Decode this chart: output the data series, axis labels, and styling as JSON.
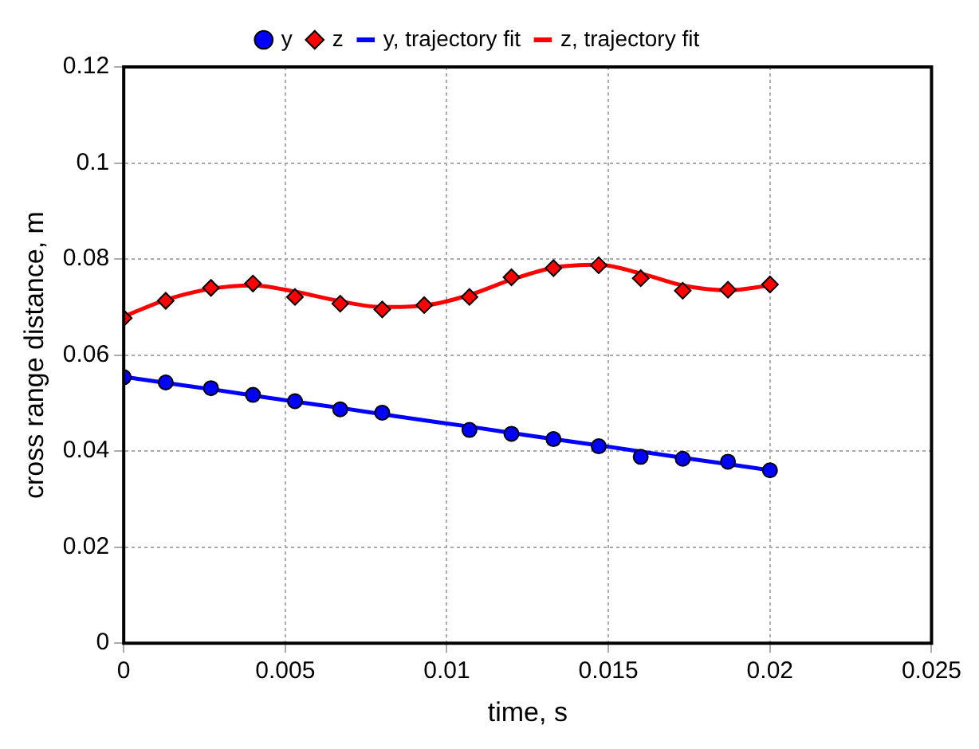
{
  "chart_data": {
    "type": "scatter",
    "xlabel": "time, s",
    "ylabel": "cross range distance, m",
    "xlim": [
      0,
      0.025
    ],
    "xticks": [
      0,
      0.005,
      0.01,
      0.015,
      0.02,
      0.025
    ],
    "ylim": [
      0,
      0.12
    ],
    "yticks": [
      0,
      0.02,
      0.04,
      0.06,
      0.08,
      0.1,
      0.12
    ],
    "grid": true,
    "legend": "top",
    "x": [
      0,
      0.0013,
      0.0027,
      0.004,
      0.0053,
      0.0067,
      0.008,
      0.0093,
      0.0107,
      0.012,
      0.0133,
      0.0147,
      0.016,
      0.0173,
      0.0187,
      0.02
    ],
    "series": [
      {
        "name": "y",
        "type": "scatter",
        "marker": "circle",
        "color": "#0000ff",
        "values": [
          0.0554,
          0.0543,
          0.0531,
          0.0517,
          0.0504,
          0.0487,
          0.048,
          null,
          0.0444,
          0.0436,
          0.0425,
          0.041,
          0.0388,
          0.0384,
          0.0378,
          0.036
        ]
      },
      {
        "name": "z",
        "type": "scatter",
        "marker": "diamond",
        "color": "#ff0000",
        "values": [
          0.0677,
          0.0713,
          0.074,
          0.0749,
          0.0721,
          0.0707,
          0.0695,
          0.0704,
          0.0721,
          0.0762,
          0.0781,
          0.0787,
          0.076,
          0.0734,
          0.0736,
          0.0747
        ]
      },
      {
        "name": "y, trajectory fit",
        "type": "line",
        "marker": "none",
        "line_style": "solid",
        "color": "#0000ff",
        "values": [
          0.0555,
          0.0542,
          0.0529,
          0.0516,
          0.0503,
          0.049,
          0.0477,
          0.0464,
          0.0451,
          0.0438,
          0.0425,
          0.0412,
          0.0399,
          0.0386,
          0.0373,
          0.036
        ]
      },
      {
        "name": "z, trajectory fit",
        "type": "line",
        "marker": "none",
        "line_style": "solid",
        "color": "#ff0000",
        "values": [
          0.068,
          0.0715,
          0.0738,
          0.0745,
          0.0732,
          0.0712,
          0.07,
          0.0703,
          0.0725,
          0.0757,
          0.0782,
          0.0788,
          0.077,
          0.0745,
          0.0735,
          0.0745
        ]
      }
    ]
  }
}
